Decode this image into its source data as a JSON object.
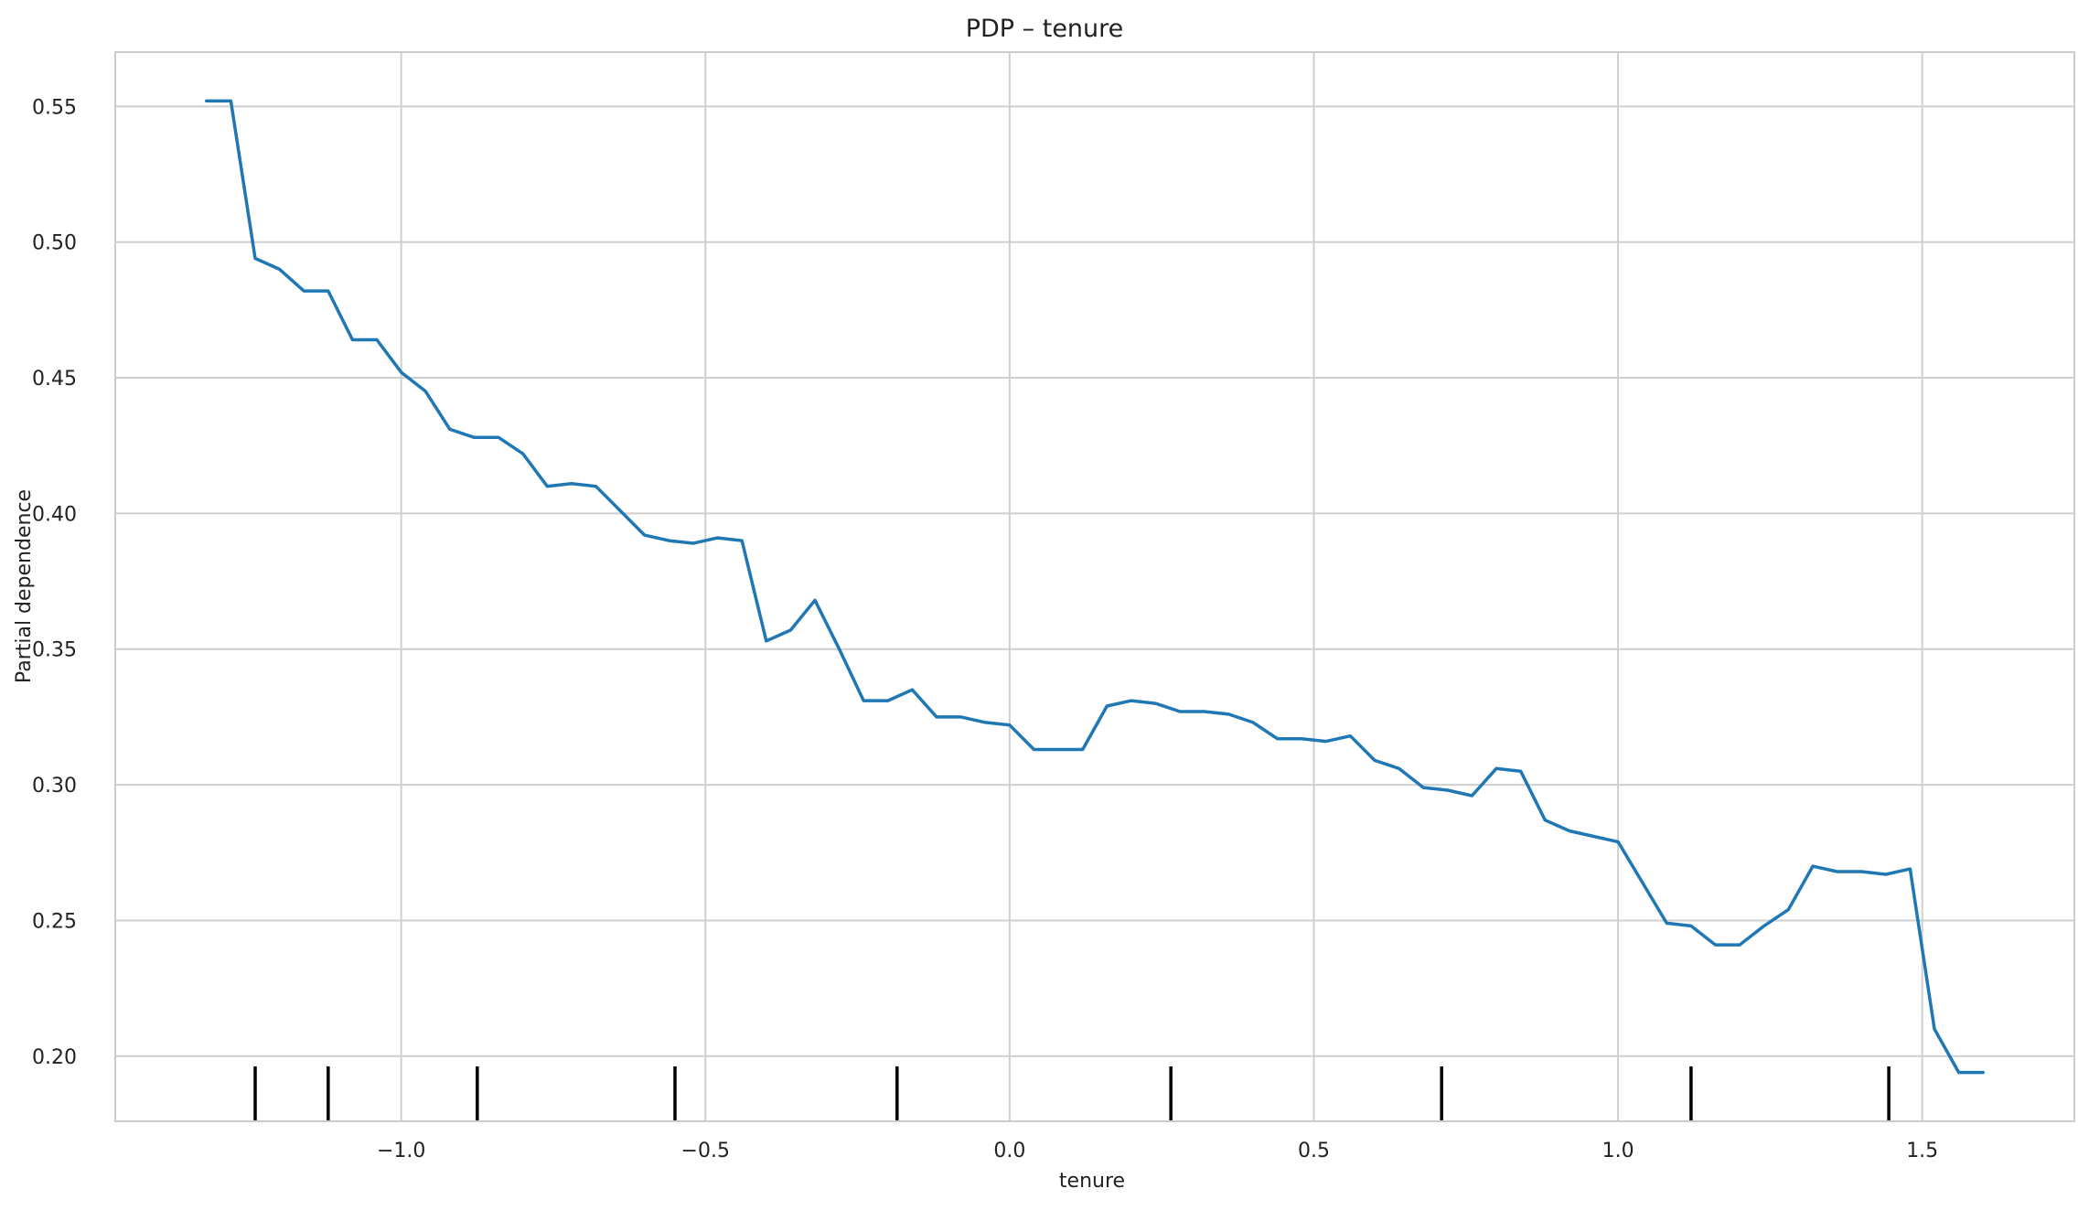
{
  "chart_data": {
    "type": "line",
    "title": "PDP – tenure",
    "xlabel": "tenure",
    "ylabel": "Partial dependence",
    "xlim": [
      -1.47,
      1.75
    ],
    "ylim": [
      0.176,
      0.57
    ],
    "grid": true,
    "xticks": [
      -1.0,
      -0.5,
      0.0,
      0.5,
      1.0,
      1.5
    ],
    "xtick_labels": [
      "−1.0",
      "−0.5",
      "0.0",
      "0.5",
      "1.0",
      "1.5"
    ],
    "yticks": [
      0.2,
      0.25,
      0.3,
      0.35,
      0.4,
      0.45,
      0.5,
      0.55
    ],
    "ytick_labels": [
      "0.20",
      "0.25",
      "0.30",
      "0.35",
      "0.40",
      "0.45",
      "0.50",
      "0.55"
    ],
    "line_color": "#1f77b4",
    "series": [
      {
        "x": [
          -1.32,
          -1.28,
          -1.24,
          -1.2,
          -1.16,
          -1.12,
          -1.08,
          -1.04,
          -1.0,
          -0.96,
          -0.92,
          -0.88,
          -0.84,
          -0.8,
          -0.76,
          -0.72,
          -0.68,
          -0.64,
          -0.6,
          -0.56,
          -0.52,
          -0.48,
          -0.44,
          -0.4,
          -0.36,
          -0.32,
          -0.28,
          -0.24,
          -0.2,
          -0.16,
          -0.12,
          -0.08,
          -0.04,
          0.0,
          0.04,
          0.08,
          0.12,
          0.16,
          0.2,
          0.24,
          0.28,
          0.32,
          0.36,
          0.4,
          0.44,
          0.48,
          0.52,
          0.56,
          0.6,
          0.64,
          0.68,
          0.72,
          0.76,
          0.8,
          0.84,
          0.88,
          0.92,
          0.96,
          1.0,
          1.04,
          1.08,
          1.12,
          1.16,
          1.2,
          1.24,
          1.28,
          1.32,
          1.36,
          1.4,
          1.44,
          1.48,
          1.52,
          1.56,
          1.6
        ],
        "y": [
          0.552,
          0.552,
          0.494,
          0.49,
          0.482,
          0.482,
          0.464,
          0.464,
          0.452,
          0.445,
          0.431,
          0.428,
          0.428,
          0.422,
          0.41,
          0.411,
          0.41,
          0.401,
          0.392,
          0.39,
          0.389,
          0.391,
          0.39,
          0.353,
          0.357,
          0.368,
          0.35,
          0.331,
          0.331,
          0.335,
          0.325,
          0.325,
          0.323,
          0.322,
          0.313,
          0.313,
          0.313,
          0.329,
          0.331,
          0.33,
          0.327,
          0.327,
          0.326,
          0.323,
          0.317,
          0.317,
          0.316,
          0.318,
          0.309,
          0.306,
          0.299,
          0.298,
          0.296,
          0.306,
          0.305,
          0.287,
          0.283,
          0.281,
          0.279,
          0.264,
          0.249,
          0.248,
          0.241,
          0.241,
          0.248,
          0.254,
          0.27,
          0.268,
          0.268,
          0.267,
          0.269,
          0.21,
          0.194,
          0.194
        ]
      }
    ],
    "deciles": [
      -1.24,
      -1.12,
      -0.875,
      -0.55,
      -0.185,
      0.265,
      0.71,
      1.12,
      1.445
    ]
  }
}
